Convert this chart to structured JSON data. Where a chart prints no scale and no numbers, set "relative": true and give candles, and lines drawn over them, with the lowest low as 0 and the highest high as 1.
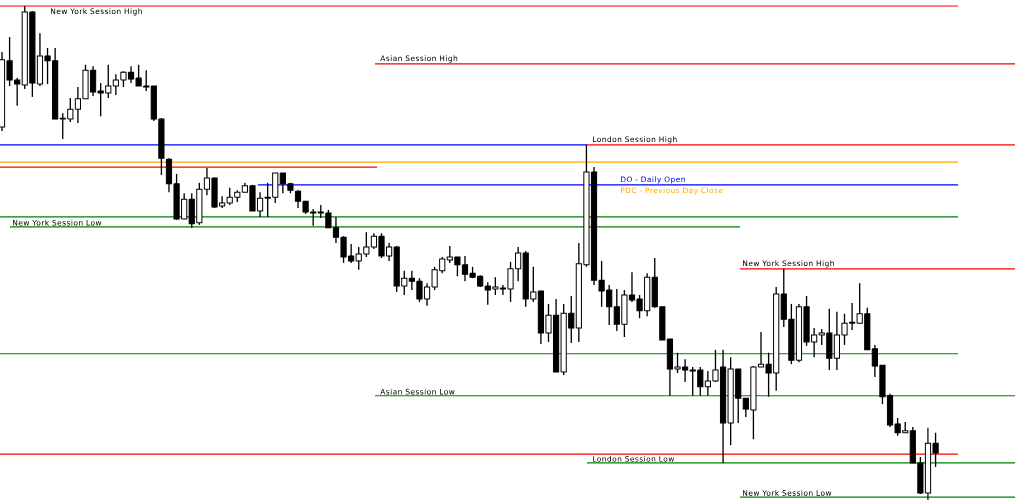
{
  "chart_data": {
    "type": "candlestick",
    "relative": true,
    "categories": [
      null,
      null,
      null,
      null,
      null,
      null,
      null,
      null,
      null,
      null,
      null,
      null,
      null,
      null,
      null,
      null,
      null,
      null,
      null,
      null,
      null,
      null,
      null,
      null,
      null,
      null,
      null,
      null,
      null,
      null,
      null,
      null,
      null,
      null,
      null,
      null,
      null,
      null,
      null,
      null,
      null,
      null,
      null,
      null,
      null,
      null,
      null,
      null,
      null,
      null,
      null,
      null,
      null,
      null,
      null,
      null,
      null,
      null,
      null,
      null,
      null,
      null,
      null,
      null,
      null,
      null,
      null,
      null,
      null,
      null,
      null,
      null,
      null,
      null,
      null,
      null,
      null,
      null,
      null,
      null,
      null,
      null,
      null,
      null,
      null,
      null,
      null,
      null,
      null,
      null,
      null,
      null,
      null,
      null,
      null,
      null,
      null,
      null,
      null,
      null,
      null,
      null,
      null,
      null,
      null,
      null,
      null,
      null,
      null,
      null,
      null,
      null,
      null,
      null,
      null,
      null,
      null,
      null,
      null,
      null,
      null,
      null,
      null,
      null
    ],
    "ohlc": [
      [
        0.755,
        0.907,
        0.747,
        0.891
      ],
      [
        0.889,
        0.937,
        0.838,
        0.85
      ],
      [
        0.85,
        0.854,
        0.798,
        0.842
      ],
      [
        0.84,
        1.0,
        0.832,
        0.988
      ],
      [
        0.988,
        0.99,
        0.816,
        0.844
      ],
      [
        0.842,
        0.945,
        0.838,
        0.899
      ],
      [
        0.899,
        0.915,
        0.842,
        0.889
      ],
      [
        0.889,
        0.915,
        0.771,
        0.771
      ],
      [
        0.771,
        0.783,
        0.731,
        0.773
      ],
      [
        0.771,
        0.814,
        0.765,
        0.791
      ],
      [
        0.791,
        0.836,
        0.763,
        0.812
      ],
      [
        0.812,
        0.881,
        0.812,
        0.87
      ],
      [
        0.87,
        0.878,
        0.818,
        0.826
      ],
      [
        0.828,
        0.844,
        0.777,
        0.824
      ],
      [
        0.824,
        0.881,
        0.814,
        0.838
      ],
      [
        0.838,
        0.862,
        0.82,
        0.85
      ],
      [
        0.85,
        0.868,
        0.836,
        0.866
      ],
      [
        0.866,
        0.878,
        0.844,
        0.852
      ],
      [
        0.854,
        0.881,
        0.838,
        0.838
      ],
      [
        0.838,
        0.87,
        0.828,
        0.836
      ],
      [
        0.838,
        0.838,
        0.767,
        0.771
      ],
      [
        0.771,
        0.773,
        0.658,
        0.692
      ],
      [
        0.69,
        0.692,
        0.623,
        0.64
      ],
      [
        0.64,
        0.66,
        0.567,
        0.569
      ],
      [
        0.569,
        0.621,
        0.569,
        0.609
      ],
      [
        0.609,
        0.621,
        0.551,
        0.559
      ],
      [
        0.561,
        0.642,
        0.557,
        0.629
      ],
      [
        0.629,
        0.672,
        0.617,
        0.652
      ],
      [
        0.652,
        0.652,
        0.591,
        0.593
      ],
      [
        0.595,
        0.615,
        0.591,
        0.601
      ],
      [
        0.601,
        0.632,
        0.597,
        0.613
      ],
      [
        0.613,
        0.627,
        0.603,
        0.623
      ],
      [
        0.623,
        0.642,
        0.623,
        0.636
      ],
      [
        0.636,
        0.638,
        0.585,
        0.585
      ],
      [
        0.585,
        0.623,
        0.573,
        0.611
      ],
      [
        0.611,
        0.642,
        0.573,
        0.613
      ],
      [
        0.613,
        0.662,
        0.601,
        0.662
      ],
      [
        0.662,
        0.662,
        0.621,
        0.64
      ],
      [
        0.64,
        0.642,
        0.621,
        0.627
      ],
      [
        0.625,
        0.627,
        0.591,
        0.605
      ],
      [
        0.605,
        0.605,
        0.579,
        0.583
      ],
      [
        0.583,
        0.589,
        0.555,
        0.581
      ],
      [
        0.581,
        0.597,
        0.571,
        0.583
      ],
      [
        0.581,
        0.587,
        0.551,
        0.551
      ],
      [
        0.551,
        0.573,
        0.52,
        0.532
      ],
      [
        0.532,
        0.534,
        0.48,
        0.492
      ],
      [
        0.494,
        0.518,
        0.48,
        0.484
      ],
      [
        0.484,
        0.512,
        0.466,
        0.498
      ],
      [
        0.498,
        0.542,
        0.492,
        0.512
      ],
      [
        0.512,
        0.54,
        0.508,
        0.534
      ],
      [
        0.534,
        0.54,
        0.49,
        0.494
      ],
      [
        0.494,
        0.52,
        0.484,
        0.512
      ],
      [
        0.512,
        0.514,
        0.421,
        0.433
      ],
      [
        0.433,
        0.464,
        0.415,
        0.449
      ],
      [
        0.449,
        0.464,
        0.425,
        0.443
      ],
      [
        0.443,
        0.449,
        0.401,
        0.407
      ],
      [
        0.407,
        0.439,
        0.393,
        0.431
      ],
      [
        0.431,
        0.472,
        0.425,
        0.466
      ],
      [
        0.464,
        0.492,
        0.459,
        0.488
      ],
      [
        0.486,
        0.514,
        0.48,
        0.492
      ],
      [
        0.492,
        0.492,
        0.453,
        0.476
      ],
      [
        0.476,
        0.494,
        0.443,
        0.457
      ],
      [
        0.459,
        0.472,
        0.449,
        0.451
      ],
      [
        0.453,
        0.455,
        0.431,
        0.433
      ],
      [
        0.433,
        0.441,
        0.395,
        0.425
      ],
      [
        0.427,
        0.451,
        0.415,
        0.431
      ],
      [
        0.429,
        0.435,
        0.415,
        0.427
      ],
      [
        0.427,
        0.482,
        0.401,
        0.468
      ],
      [
        0.468,
        0.512,
        0.443,
        0.5
      ],
      [
        0.5,
        0.504,
        0.391,
        0.407
      ],
      [
        0.407,
        0.472,
        0.401,
        0.421
      ],
      [
        0.423,
        0.423,
        0.316,
        0.338
      ],
      [
        0.338,
        0.397,
        0.32,
        0.374
      ],
      [
        0.374,
        0.407,
        0.259,
        0.259
      ],
      [
        0.259,
        0.397,
        0.253,
        0.378
      ],
      [
        0.378,
        0.413,
        0.318,
        0.348
      ],
      [
        0.348,
        0.52,
        0.32,
        0.478
      ],
      [
        0.476,
        0.719,
        0.472,
        0.664
      ],
      [
        0.664,
        0.674,
        0.435,
        0.445
      ],
      [
        0.445,
        0.484,
        0.391,
        0.423
      ],
      [
        0.425,
        0.435,
        0.354,
        0.391
      ],
      [
        0.391,
        0.427,
        0.342,
        0.356
      ],
      [
        0.356,
        0.425,
        0.33,
        0.415
      ],
      [
        0.415,
        0.461,
        0.401,
        0.405
      ],
      [
        0.407,
        0.415,
        0.368,
        0.383
      ],
      [
        0.383,
        0.459,
        0.372,
        0.451
      ],
      [
        0.451,
        0.49,
        0.389,
        0.391
      ],
      [
        0.391,
        0.391,
        0.324,
        0.324
      ],
      [
        0.326,
        0.326,
        0.211,
        0.265
      ],
      [
        0.265,
        0.298,
        0.257,
        0.269
      ],
      [
        0.269,
        0.285,
        0.239,
        0.263
      ],
      [
        0.263,
        0.269,
        0.211,
        0.261
      ],
      [
        0.263,
        0.269,
        0.211,
        0.229
      ],
      [
        0.229,
        0.261,
        0.211,
        0.241
      ],
      [
        0.241,
        0.304,
        0.239,
        0.263
      ],
      [
        0.269,
        0.304,
        0.075,
        0.156
      ],
      [
        0.156,
        0.289,
        0.111,
        0.265
      ],
      [
        0.265,
        0.265,
        0.156,
        0.206
      ],
      [
        0.206,
        0.206,
        0.168,
        0.184
      ],
      [
        0.182,
        0.271,
        0.123,
        0.269
      ],
      [
        0.269,
        0.34,
        0.269,
        0.275
      ],
      [
        0.275,
        0.298,
        0.209,
        0.257
      ],
      [
        0.257,
        0.431,
        0.221,
        0.417
      ],
      [
        0.417,
        0.468,
        0.35,
        0.366
      ],
      [
        0.366,
        0.397,
        0.275,
        0.283
      ],
      [
        0.283,
        0.397,
        0.279,
        0.391
      ],
      [
        0.391,
        0.413,
        0.312,
        0.32
      ],
      [
        0.32,
        0.348,
        0.289,
        0.334
      ],
      [
        0.334,
        0.346,
        0.314,
        0.338
      ],
      [
        0.338,
        0.387,
        0.263,
        0.287
      ],
      [
        0.287,
        0.381,
        0.263,
        0.334
      ],
      [
        0.334,
        0.377,
        0.314,
        0.358
      ],
      [
        0.358,
        0.399,
        0.344,
        0.36
      ],
      [
        0.358,
        0.439,
        0.358,
        0.377
      ],
      [
        0.377,
        0.389,
        0.304,
        0.304
      ],
      [
        0.306,
        0.314,
        0.249,
        0.271
      ],
      [
        0.273,
        0.273,
        0.194,
        0.209
      ],
      [
        0.211,
        0.215,
        0.148,
        0.152
      ],
      [
        0.154,
        0.166,
        0.13,
        0.136
      ],
      [
        0.136,
        0.158,
        0.136,
        0.14
      ],
      [
        0.14,
        0.148,
        0.075,
        0.075
      ],
      [
        0.075,
        0.087,
        0.012,
        0.014
      ],
      [
        0.014,
        0.146,
        0.0,
        0.115
      ],
      [
        0.115,
        0.136,
        0.067,
        0.095
      ]
    ],
    "ref_lines": [
      {
        "axis": "y",
        "value": 1.0,
        "label": "New York Session High",
        "color": "#ff0000"
      },
      {
        "axis": "y",
        "value": 0.883,
        "label": "Asian Session High",
        "color": "#ff0000"
      },
      {
        "axis": "y",
        "value": 0.719,
        "color": "#0000ff"
      },
      {
        "axis": "y",
        "value": 0.719,
        "label": "London Session High",
        "color": "#ff0000"
      },
      {
        "axis": "y",
        "value": 0.684,
        "label": "PDC - Previous Day Close",
        "color": "#ffa500"
      },
      {
        "axis": "y",
        "value": 0.674,
        "color": "#ff0000"
      },
      {
        "axis": "y",
        "value": 0.638,
        "label": "DO - Daily Open",
        "color": "#0000ff"
      },
      {
        "axis": "y",
        "value": 0.573,
        "color": "#008000"
      },
      {
        "axis": "y",
        "value": 0.553,
        "label": "New York Session Low",
        "color": "#008000"
      },
      {
        "axis": "y",
        "value": 0.296,
        "color": "#008000"
      },
      {
        "axis": "y",
        "value": 0.211,
        "label": "Asian Session Low",
        "color": "#008000"
      },
      {
        "axis": "y",
        "value": 0.093,
        "color": "#ff0000"
      },
      {
        "axis": "y",
        "value": 0.075,
        "label": "London Session Low",
        "color": "#008000"
      },
      {
        "axis": "y",
        "value": 0.468,
        "label": "New York Session High",
        "color": "#ff0000"
      },
      {
        "axis": "y",
        "value": 0.006,
        "label": "New York Session Low",
        "color": "#008000"
      }
    ]
  }
}
